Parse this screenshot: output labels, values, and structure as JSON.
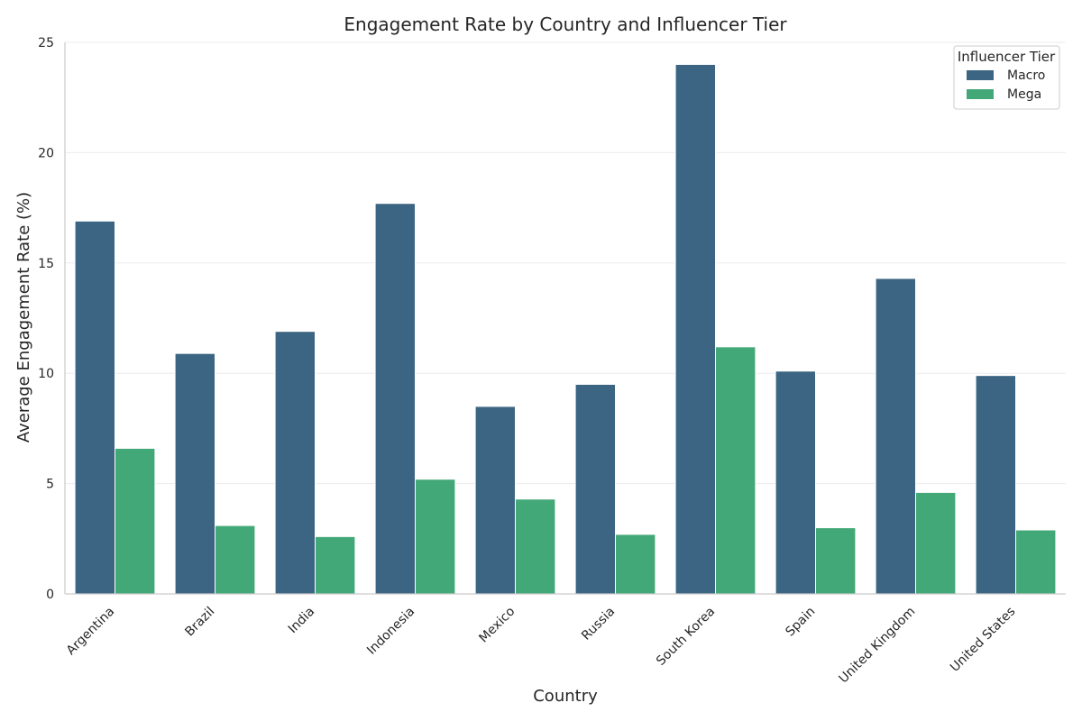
{
  "chart_data": {
    "type": "bar",
    "title": "Engagement Rate by Country and Influencer Tier",
    "xlabel": "Country",
    "ylabel": "Average Engagement Rate (%)",
    "ylim": [
      0,
      25
    ],
    "yticks": [
      0,
      5,
      10,
      15,
      20,
      25
    ],
    "grid": "horizontal",
    "legend": {
      "title": "Influencer Tier",
      "placement": "top-right"
    },
    "categories": [
      "Argentina",
      "Brazil",
      "India",
      "Indonesia",
      "Mexico",
      "Russia",
      "South Korea",
      "Spain",
      "United Kingdom",
      "United States"
    ],
    "series": [
      {
        "name": "Macro",
        "color": "#3b6582",
        "values": [
          16.9,
          10.9,
          11.9,
          17.7,
          8.5,
          9.5,
          24.0,
          10.1,
          14.3,
          9.9
        ]
      },
      {
        "name": "Mega",
        "color": "#43a877",
        "values": [
          6.6,
          3.1,
          2.6,
          5.2,
          4.3,
          2.7,
          11.2,
          3.0,
          4.6,
          2.9
        ]
      }
    ]
  }
}
